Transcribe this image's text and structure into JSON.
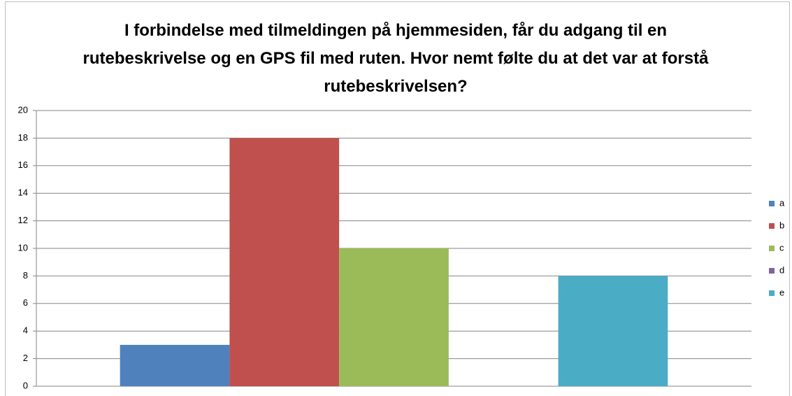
{
  "chart_data": {
    "type": "bar",
    "title": "I forbindelse med tilmeldingen på hjemmesiden, får du adgang til en rutebeskrivelse og en GPS fil med ruten. Hvor nemt følte du at det var at forstå rutebeskrivelsen?",
    "categories": [
      null
    ],
    "series": [
      {
        "name": "a",
        "color": "#4f81bd",
        "values": [
          3
        ]
      },
      {
        "name": "b",
        "color": "#c0504d",
        "values": [
          18
        ]
      },
      {
        "name": "c",
        "color": "#9bbb59",
        "values": [
          10
        ]
      },
      {
        "name": "d",
        "color": "#8064a2",
        "values": [
          0
        ]
      },
      {
        "name": "e",
        "color": "#4bacc6",
        "values": [
          8
        ]
      }
    ],
    "ylim": [
      0,
      20
    ],
    "yticks": [
      0,
      2,
      4,
      6,
      8,
      10,
      12,
      14,
      16,
      18,
      20
    ],
    "grid": true,
    "legend": "right"
  }
}
